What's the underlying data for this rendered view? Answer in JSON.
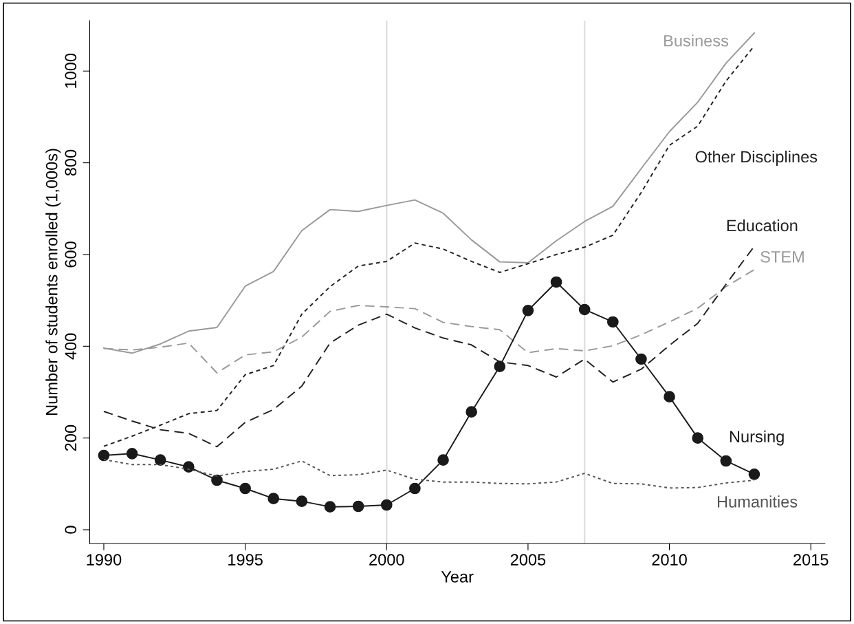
{
  "chart_data": {
    "type": "line",
    "xlabel": "Year",
    "ylabel": "Number of students enrolled (1,000s)",
    "x": [
      1990,
      1991,
      1992,
      1993,
      1994,
      1995,
      1996,
      1997,
      1998,
      1999,
      2000,
      2001,
      2002,
      2003,
      2004,
      2005,
      2006,
      2007,
      2008,
      2009,
      2010,
      2011,
      2012,
      2013
    ],
    "series": [
      {
        "name": "Business",
        "color": "#999999",
        "line_style": "solid",
        "marker": "none",
        "values": [
          396,
          385,
          405,
          433,
          441,
          531,
          563,
          652,
          698,
          694,
          707,
          719,
          690,
          632,
          584,
          582,
          630,
          672,
          705,
          787,
          868,
          932,
          1017,
          1083
        ]
      },
      {
        "name": "Other Disciplines",
        "color": "#222222",
        "line_style": "dotted",
        "marker": "none",
        "values": [
          182,
          204,
          228,
          253,
          260,
          338,
          358,
          470,
          530,
          575,
          585,
          625,
          612,
          585,
          561,
          580,
          600,
          616,
          642,
          735,
          838,
          880,
          978,
          1055
        ]
      },
      {
        "name": "STEM",
        "color": "#999999",
        "line_style": "dashed",
        "marker": "none",
        "values": [
          395,
          392,
          398,
          407,
          342,
          381,
          388,
          420,
          476,
          489,
          486,
          482,
          452,
          443,
          436,
          386,
          395,
          390,
          401,
          425,
          453,
          483,
          530,
          567
        ]
      },
      {
        "name": "Education",
        "color": "#222222",
        "line_style": "dashed",
        "marker": "none",
        "values": [
          258,
          237,
          218,
          210,
          181,
          234,
          262,
          313,
          407,
          446,
          470,
          440,
          418,
          403,
          366,
          358,
          333,
          372,
          322,
          350,
          402,
          450,
          535,
          618
        ]
      },
      {
        "name": "Nursing",
        "color": "#1a1a1a",
        "line_style": "solid",
        "marker": "circle",
        "values": [
          162,
          166,
          152,
          137,
          108,
          90,
          68,
          62,
          50,
          51,
          54,
          90,
          152,
          257,
          356,
          478,
          540,
          480,
          453,
          372,
          290,
          200,
          150,
          121
        ]
      },
      {
        "name": "Humanities",
        "color": "#555555",
        "line_style": "dotted",
        "marker": "none",
        "values": [
          153,
          142,
          142,
          132,
          117,
          127,
          132,
          150,
          118,
          120,
          130,
          110,
          104,
          104,
          101,
          100,
          104,
          123,
          101,
          100,
          91,
          92,
          102,
          108
        ]
      }
    ],
    "xlim": [
      1989.5,
      2015.5
    ],
    "xticks": [
      1990,
      1995,
      2000,
      2005,
      2010,
      2015
    ],
    "ylim": [
      -30,
      1110
    ],
    "yticks": [
      0,
      200,
      400,
      600,
      800,
      1000
    ],
    "ref_lines": [
      {
        "axis": "x",
        "value": 2000,
        "color": "#e0e0e0"
      },
      {
        "axis": "x",
        "value": 2007,
        "color": "#e0e0e0"
      }
    ],
    "grid": false,
    "legend": false
  }
}
